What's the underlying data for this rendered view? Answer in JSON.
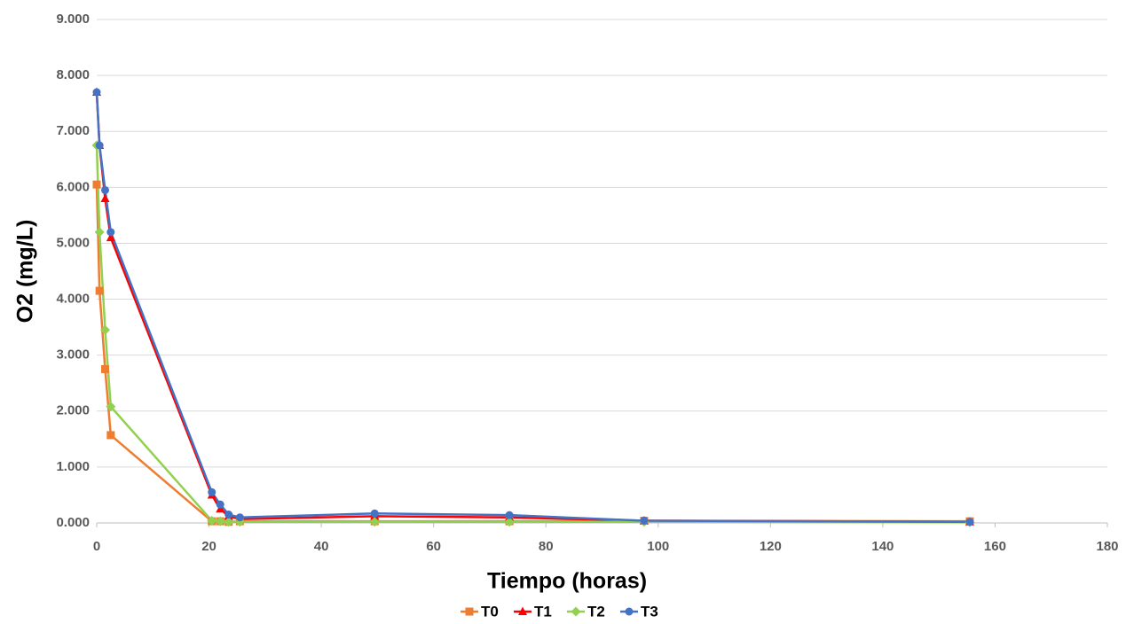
{
  "chart_data": {
    "type": "line",
    "x_label": "Tiempo (horas)",
    "y_label": "O2  (mg/L)",
    "x": [
      0,
      0.5,
      1.5,
      2.5,
      20.5,
      22,
      23.5,
      25.5,
      49.5,
      73.5,
      97.5,
      155.5
    ],
    "series": [
      {
        "name": "T0",
        "color": "#ed7d31",
        "marker": "square",
        "values": [
          6.05,
          4.15,
          2.75,
          1.57,
          0.03,
          0.03,
          0.02,
          0.03,
          0.03,
          0.03,
          0.04,
          0.03
        ]
      },
      {
        "name": "T1",
        "color": "#ff0000",
        "marker": "triangle",
        "values": [
          7.7,
          6.75,
          5.8,
          5.1,
          0.5,
          0.25,
          0.12,
          0.07,
          0.12,
          0.1,
          0.04,
          0.02
        ]
      },
      {
        "name": "T2",
        "color": "#92d050",
        "marker": "diamond",
        "values": [
          6.75,
          5.2,
          3.45,
          2.08,
          0.04,
          0.03,
          0.02,
          0.02,
          0.02,
          0.02,
          0.02,
          0.01
        ]
      },
      {
        "name": "T3",
        "color": "#4472c4",
        "marker": "circle",
        "values": [
          7.7,
          6.75,
          5.95,
          5.2,
          0.55,
          0.33,
          0.15,
          0.1,
          0.17,
          0.14,
          0.04,
          0.02
        ]
      }
    ],
    "xlim": [
      0,
      180
    ],
    "xticks": [
      0,
      20,
      40,
      60,
      80,
      100,
      120,
      140,
      160,
      180
    ],
    "ylim": [
      0,
      9
    ],
    "yticks": [
      {
        "value": 0,
        "label": "0.000"
      },
      {
        "value": 1,
        "label": "1.000"
      },
      {
        "value": 2,
        "label": "2.000"
      },
      {
        "value": 3,
        "label": "3.000"
      },
      {
        "value": 4,
        "label": "4.000"
      },
      {
        "value": 5,
        "label": "5.000"
      },
      {
        "value": 6,
        "label": "6.000"
      },
      {
        "value": 7,
        "label": "7.000"
      },
      {
        "value": 8,
        "label": "8.000"
      },
      {
        "value": 9,
        "label": "9.000"
      }
    ],
    "grid": true,
    "legend": "bottom"
  }
}
